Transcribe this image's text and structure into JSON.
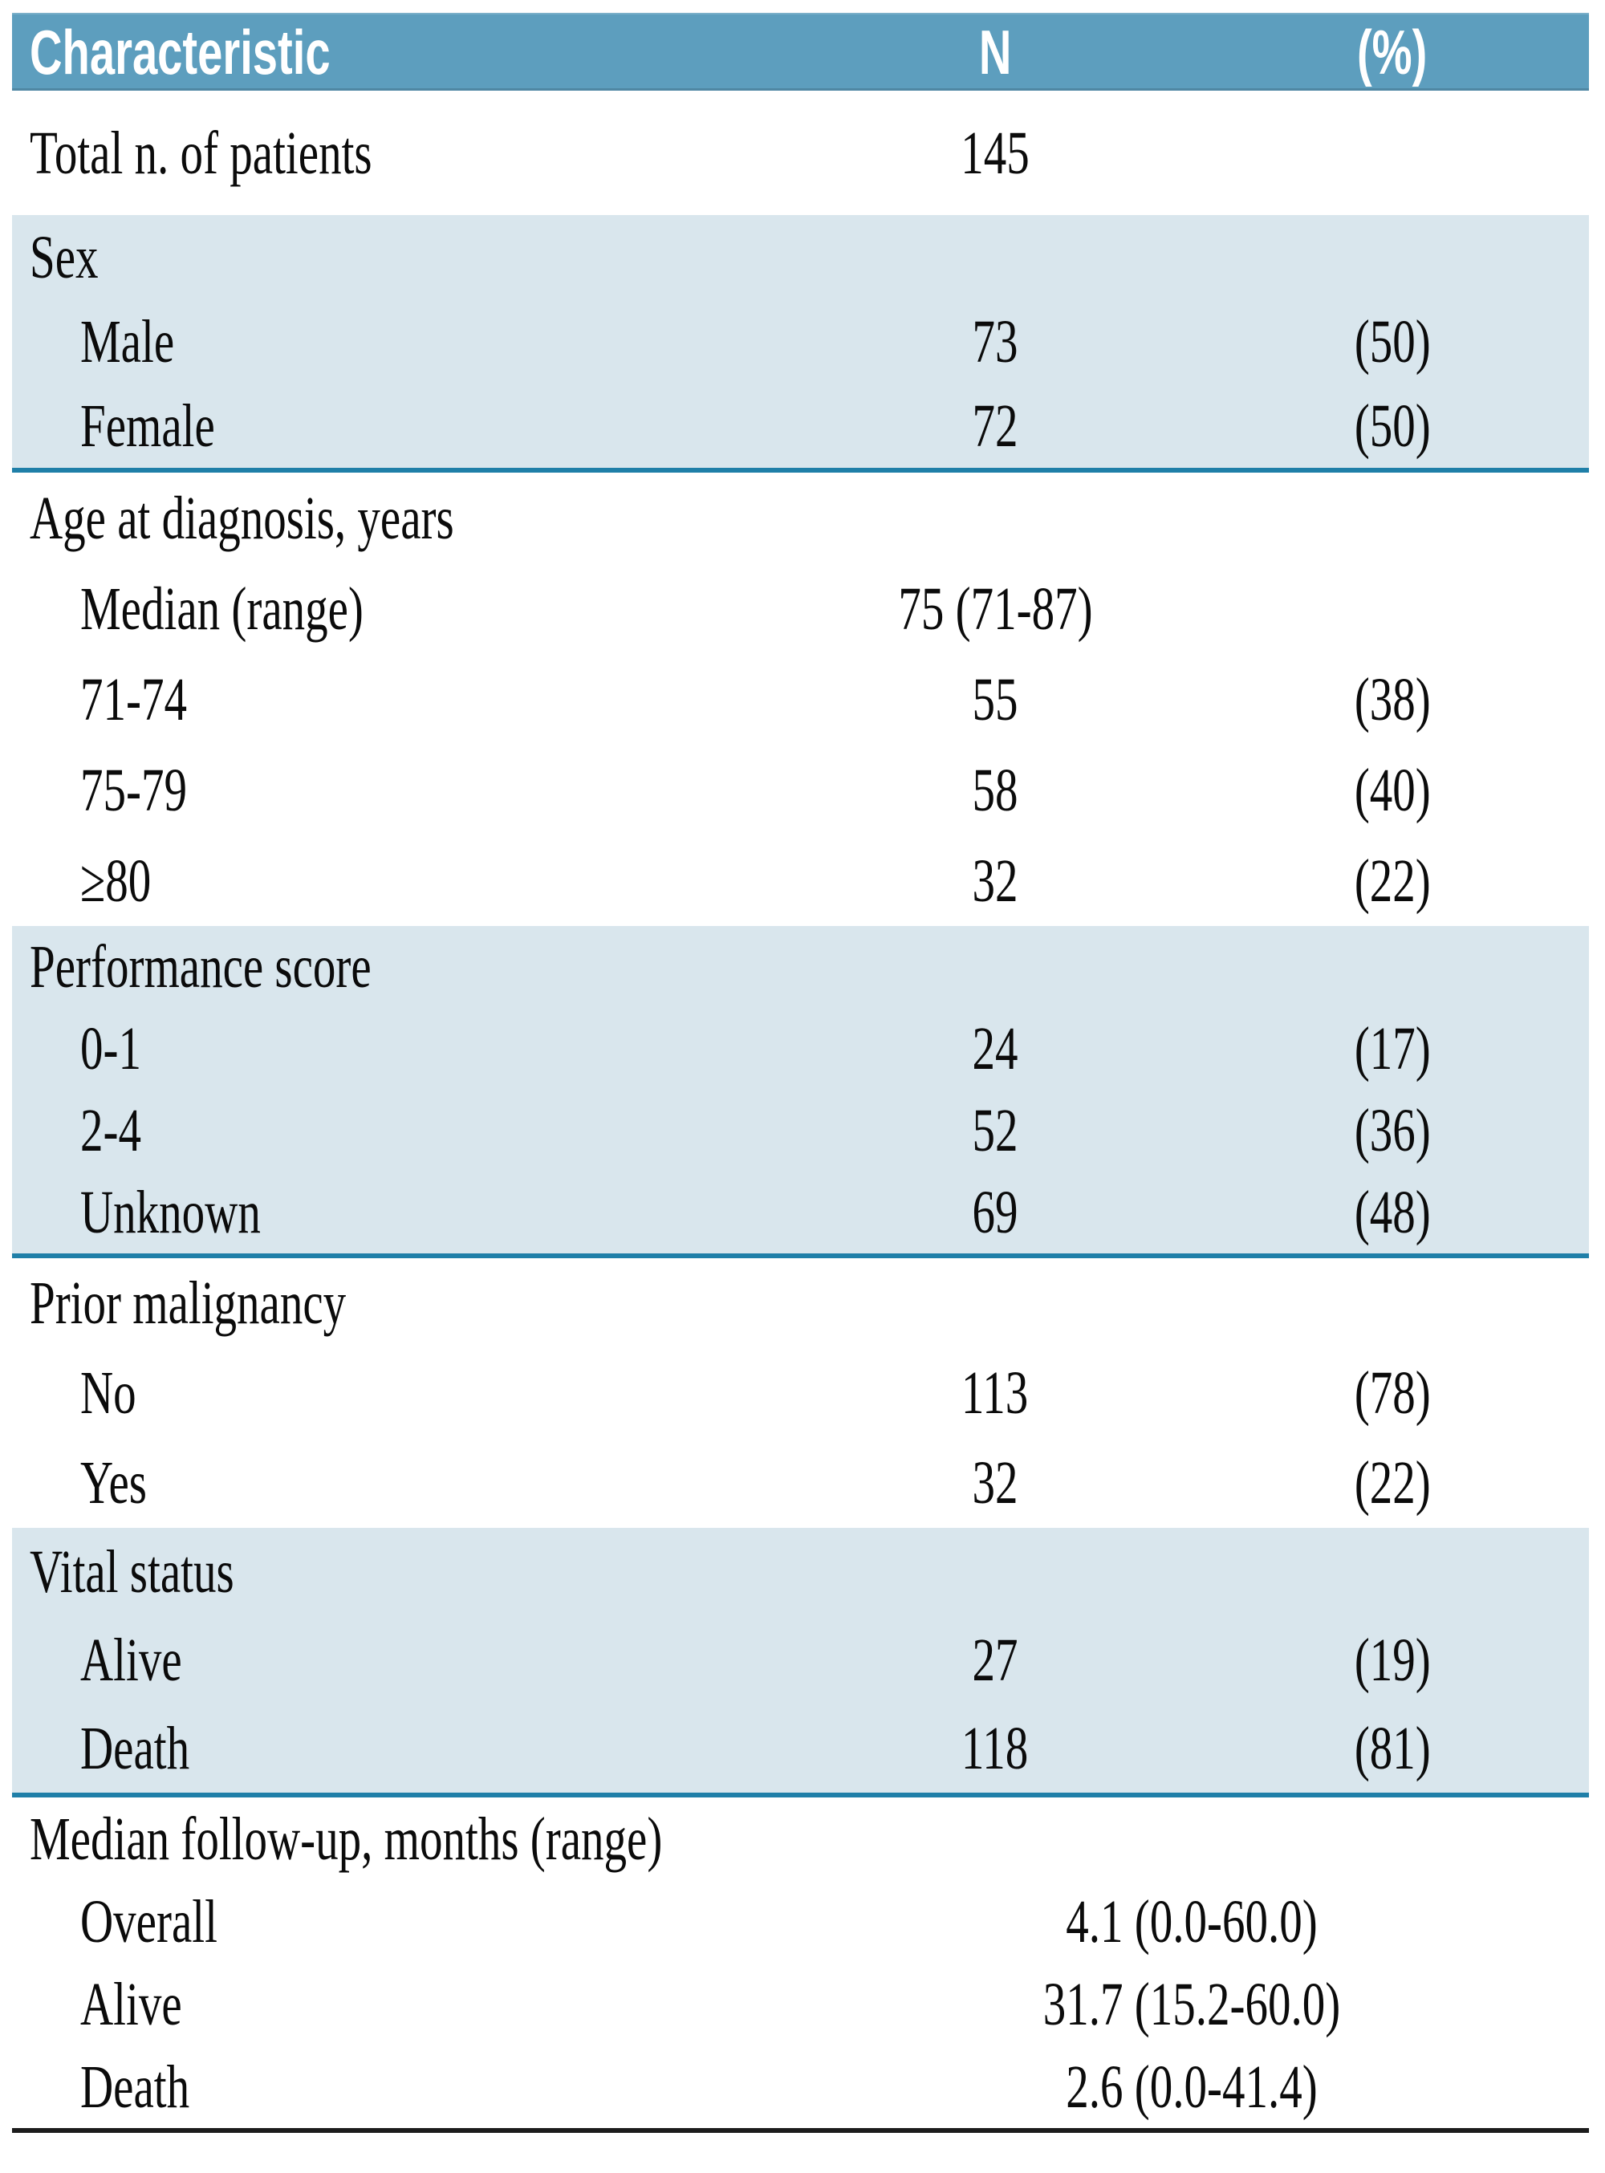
{
  "figure": {
    "kind": "patient-characteristics-table"
  },
  "table": {
    "columns": [
      "Characteristic",
      "N",
      "(%)"
    ],
    "sections": [
      {
        "rows": [
          {
            "label": "Total n. of patients",
            "indent": false,
            "n": "145"
          }
        ]
      },
      {
        "rows": [
          {
            "label": "Sex",
            "indent": false
          },
          {
            "label": "Male",
            "indent": true,
            "n": "73",
            "pct": "(50)"
          },
          {
            "label": "Female",
            "indent": true,
            "n": "72",
            "pct": "(50)"
          }
        ]
      },
      {
        "rows": [
          {
            "label": "Age at diagnosis, years",
            "indent": false
          },
          {
            "label": "Median (range)",
            "indent": true,
            "n": "75 (71-87)"
          },
          {
            "label": "71-74",
            "indent": true,
            "n": "55",
            "pct": "(38)"
          },
          {
            "label": "75-79",
            "indent": true,
            "n": "58",
            "pct": "(40)"
          },
          {
            "label": "≥80",
            "indent": true,
            "n": "32",
            "pct": "(22)"
          }
        ]
      },
      {
        "rows": [
          {
            "label": "Performance score",
            "indent": false
          },
          {
            "label": "0-1",
            "indent": true,
            "n": "24",
            "pct": "(17)"
          },
          {
            "label": "2-4",
            "indent": true,
            "n": "52",
            "pct": "(36)"
          },
          {
            "label": "Unknown",
            "indent": true,
            "n": "69",
            "pct": "(48)"
          }
        ]
      },
      {
        "rows": [
          {
            "label": "Prior malignancy",
            "indent": false
          },
          {
            "label": "No",
            "indent": true,
            "n": "113",
            "pct": "(78)"
          },
          {
            "label": "Yes",
            "indent": true,
            "n": "32",
            "pct": "(22)"
          }
        ]
      },
      {
        "rows": [
          {
            "label": "Vital status",
            "indent": false
          },
          {
            "label": "Alive",
            "indent": true,
            "n": "27",
            "pct": "(19)"
          },
          {
            "label": "Death",
            "indent": true,
            "n": "118",
            "pct": "(81)"
          }
        ]
      },
      {
        "rows": [
          {
            "label": "Median follow-up, months (range)",
            "indent": false
          },
          {
            "label": "Overall",
            "indent": true,
            "span": "4.1 (0.0-60.0)"
          },
          {
            "label": "Alive",
            "indent": true,
            "span": "31.7 (15.2-60.0)"
          },
          {
            "label": "Death",
            "indent": true,
            "span": "2.6 (0.0-41.4)"
          }
        ]
      }
    ]
  },
  "colors": {
    "header_bg": "#5D9EBE",
    "band_bg": "#D9E6ED",
    "rule_teal": "#1F7FA8",
    "rule_black": "#1C1C1C",
    "header_text": "#FFFFFF",
    "body_text": "#0B0B0B"
  }
}
